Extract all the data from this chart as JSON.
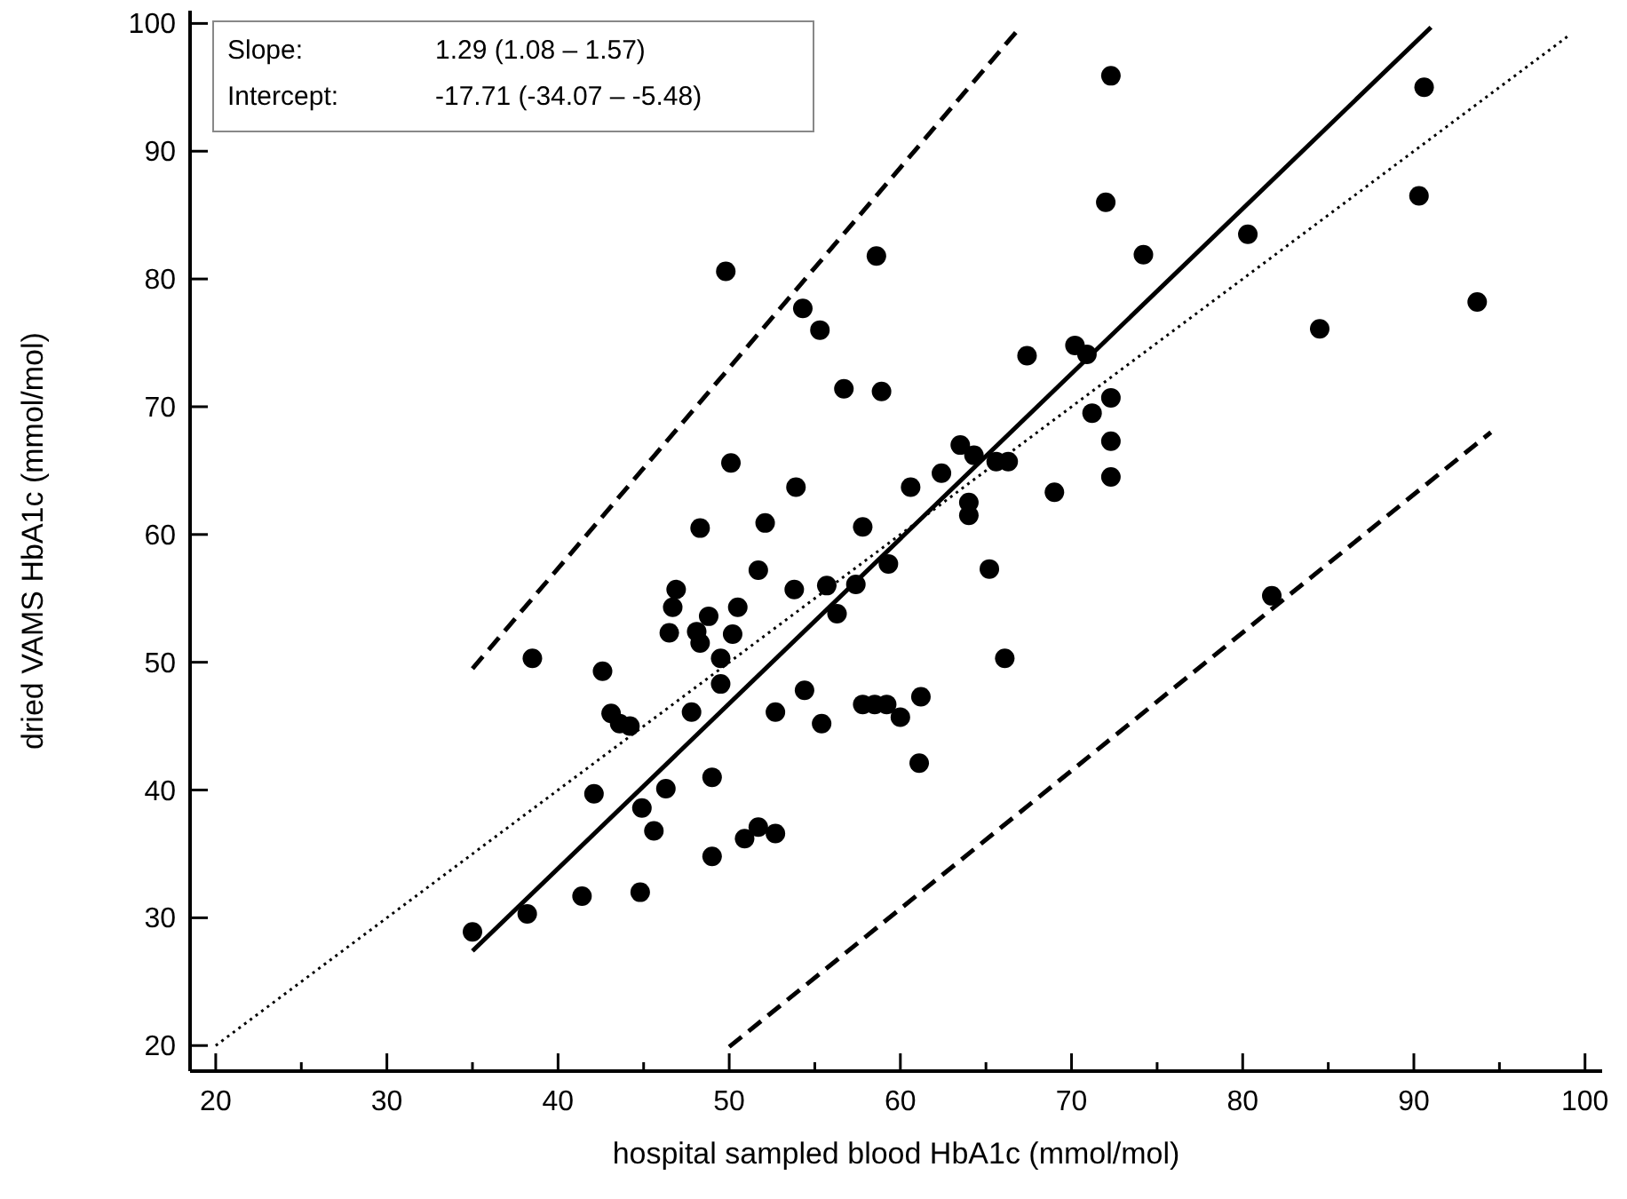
{
  "chart_data": {
    "type": "scatter",
    "xlabel": "hospital sampled blood HbA1c (mmol/mol)",
    "ylabel": "dried VAMS HbA1c (mmol/mol)",
    "xlim": [
      18.5,
      101
    ],
    "ylim": [
      18,
      101
    ],
    "xticks": [
      20,
      {
        "value": 25,
        "label": null
      },
      30,
      {
        "value": 35,
        "label": null
      },
      40,
      {
        "value": 45,
        "label": null
      },
      50,
      {
        "value": 55,
        "label": null
      },
      60,
      {
        "value": 65,
        "label": null
      },
      70,
      {
        "value": 75,
        "label": null
      },
      80,
      {
        "value": 85,
        "label": null
      },
      90,
      {
        "value": 95,
        "label": null
      },
      100
    ],
    "yticks": [
      20,
      30,
      40,
      50,
      60,
      70,
      80,
      90,
      100
    ],
    "grid": false,
    "annotations": [
      "Slope:",
      "1.29 (1.08 – 1.57)",
      "Intercept:",
      "-17.71 (-34.07 – -5.48)"
    ],
    "series": [
      {
        "color": "#000000",
        "marker": "circle",
        "x": [
          49.8,
          58.6,
          54.3,
          55.3,
          56.7,
          58.9,
          50.1,
          53.9,
          60.6,
          62.4,
          63.5,
          64.3,
          65.6,
          66.3,
          64,
          64,
          48.3,
          52.1,
          57.8,
          51.7,
          65.2,
          59.3,
          57.4,
          55.7,
          53.8,
          56.3,
          46.9,
          46.7,
          50.5,
          48.8,
          46.5,
          48.1,
          48.3,
          50.2,
          49.5,
          38.5,
          42.6,
          49.5,
          43.1,
          43.6,
          44.2,
          47.8,
          52.7,
          54.4,
          55.4,
          57.8,
          58.5,
          59.2,
          60,
          61.2,
          61.1,
          66.1,
          42.1,
          46.3,
          44.9,
          45.6,
          49,
          49,
          50.9,
          51.7,
          52.7,
          41.4,
          44.8,
          38.2,
          35,
          72.3,
          90.6,
          72,
          90.3,
          80.3,
          74.2,
          93.7,
          84.5,
          67.4,
          70.2,
          70.9,
          72.3,
          71.2,
          72.3,
          72.3,
          69,
          81.7
        ],
        "values": [
          80.6,
          81.8,
          77.7,
          76,
          71.4,
          71.2,
          65.6,
          63.7,
          63.7,
          64.8,
          67,
          66.2,
          65.7,
          65.7,
          62.5,
          61.5,
          60.5,
          60.9,
          60.6,
          57.2,
          57.3,
          57.7,
          56.1,
          56,
          55.7,
          53.8,
          55.7,
          54.3,
          54.3,
          53.6,
          52.3,
          52.4,
          51.5,
          52.2,
          50.3,
          50.3,
          49.3,
          48.3,
          46,
          45.2,
          45,
          46.1,
          46.1,
          47.8,
          45.2,
          46.7,
          46.7,
          46.7,
          45.7,
          47.3,
          42.1,
          50.3,
          39.7,
          40.1,
          38.6,
          36.8,
          41,
          34.8,
          36.2,
          37.1,
          36.6,
          31.7,
          32,
          30.3,
          28.9,
          95.9,
          95,
          86,
          86.5,
          83.5,
          81.9,
          78.2,
          76.1,
          74,
          74.8,
          74.1,
          70.7,
          69.5,
          67.3,
          64.5,
          63.3,
          55.2
        ]
      },
      {
        "type": "line",
        "color": "#000000",
        "line_style": "solid",
        "marker": "none",
        "x": [
          35,
          91
        ],
        "values": [
          27.4,
          99.7
        ]
      },
      {
        "type": "line",
        "color": "#000000",
        "line_style": "dotted",
        "marker": "none",
        "x": [
          20,
          99
        ],
        "values": [
          20,
          99
        ]
      },
      {
        "type": "line",
        "color": "#000000",
        "line_style": "dashed",
        "marker": "none",
        "x": [
          35,
          67
        ],
        "values": [
          49.5,
          99.7
        ]
      },
      {
        "type": "line",
        "color": "#000000",
        "line_style": "dashed",
        "marker": "none",
        "x": [
          50,
          94.5
        ],
        "values": [
          19.9,
          68
        ]
      }
    ]
  }
}
